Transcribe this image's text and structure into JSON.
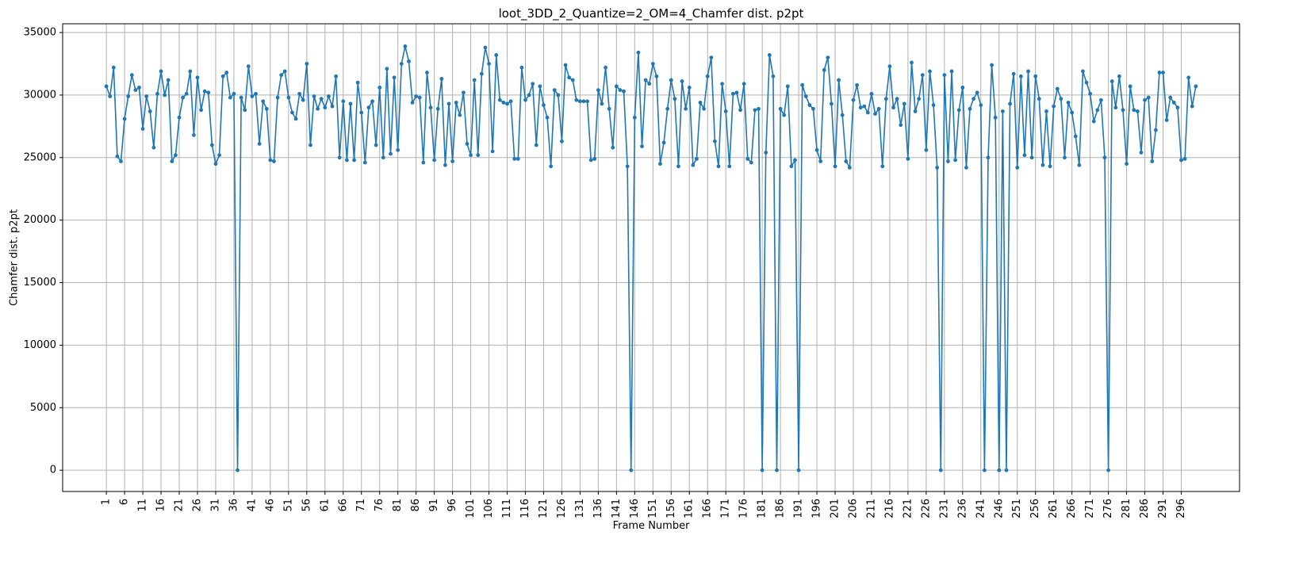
{
  "chart_data": {
    "type": "line",
    "title": "loot_3DD_2_Quantize=2_OM=4_Chamfer dist. p2pt",
    "xlabel": "Frame Number",
    "ylabel": "Chamfer dist. p2pt",
    "xlim": [
      -11,
      312
    ],
    "ylim": [
      -1700,
      35700
    ],
    "x_ticks": [
      1,
      6,
      11,
      16,
      21,
      26,
      31,
      36,
      41,
      46,
      51,
      56,
      61,
      66,
      71,
      76,
      81,
      86,
      91,
      96,
      101,
      106,
      111,
      116,
      121,
      126,
      131,
      136,
      141,
      146,
      151,
      156,
      161,
      166,
      171,
      176,
      181,
      186,
      191,
      196,
      201,
      206,
      211,
      216,
      221,
      226,
      231,
      236,
      241,
      246,
      251,
      256,
      261,
      266,
      271,
      276,
      281,
      286,
      291,
      296
    ],
    "y_ticks": [
      0,
      5000,
      10000,
      15000,
      20000,
      25000,
      30000,
      35000
    ],
    "grid": true,
    "color": "#1f77b4",
    "series": [
      {
        "x_start": 1,
        "values": [
          30700,
          29900,
          32200,
          25100,
          24700,
          28100,
          29900,
          31600,
          30400,
          30600,
          27300,
          29900,
          28700,
          25800,
          30100,
          31900,
          30000,
          31200,
          24700,
          25200,
          28200,
          29800,
          30100,
          31900,
          26800,
          31400,
          28800,
          30300,
          30200,
          26000,
          24500,
          25200,
          31500,
          31800,
          29800,
          30100,
          0,
          29800,
          28800,
          32300,
          29900,
          30100,
          26100,
          29500,
          28900,
          24800,
          24700,
          29800,
          31600,
          31900,
          29800,
          28600,
          28100,
          30100,
          29600,
          32500,
          26000,
          29900,
          28900,
          29700,
          29000,
          29900,
          29100,
          31500,
          25000,
          29500,
          24800,
          29300,
          24800,
          31000,
          28600,
          24600,
          29000,
          29500,
          26000,
          30600,
          25000,
          32100,
          25300,
          31400,
          25600,
          32500,
          33900,
          32700,
          29400,
          29900,
          29800,
          24600,
          31800,
          29000,
          24800,
          28900,
          31300,
          24400,
          29300,
          24700,
          29400,
          28400,
          30200,
          26100,
          25200,
          31200,
          25200,
          31700,
          33800,
          32500,
          25500,
          33200,
          29600,
          29400,
          29300,
          29500,
          24900,
          24900,
          32200,
          29600,
          30000,
          30900,
          26000,
          30700,
          29200,
          28200,
          24300,
          30400,
          30000,
          26300,
          32400,
          31400,
          31200,
          29600,
          29500,
          29500,
          29500,
          24800,
          24900,
          30400,
          29300,
          32200,
          28900,
          25800,
          30700,
          30400,
          30300,
          24300,
          0,
          28200,
          33400,
          25900,
          31200,
          30900,
          32500,
          31500,
          24500,
          26200,
          28900,
          31200,
          29700,
          24300,
          31100,
          28900,
          30600,
          24400,
          24900,
          29400,
          28900,
          31500,
          33000,
          26300,
          24300,
          30900,
          28700,
          24300,
          30100,
          30200,
          28800,
          30900,
          24900,
          24600,
          28800,
          28900,
          0,
          25400,
          33200,
          31500,
          0,
          28900,
          28400,
          30700,
          24300,
          24800,
          0,
          30800,
          29900,
          29200,
          28900,
          25600,
          24700,
          32000,
          33000,
          29300,
          24300,
          31200,
          28400,
          24700,
          24200,
          29600,
          30800,
          29000,
          29100,
          28600,
          30100,
          28500,
          28900,
          24300,
          29700,
          32300,
          29000,
          29700,
          27600,
          29300,
          24900,
          32600,
          28700,
          29700,
          31600,
          25600,
          31900,
          29200,
          24200,
          0,
          31600,
          24700,
          31900,
          24800,
          28800,
          30600,
          24200,
          28900,
          29700,
          30200,
          29200,
          0,
          25000,
          32400,
          28200,
          0,
          28700,
          0,
          29300,
          31700,
          24200,
          31500,
          25200,
          31900,
          25000,
          31500,
          29700,
          24400,
          28700,
          24300,
          29100,
          30500,
          29700,
          25000,
          29400,
          28600,
          26700,
          24400,
          31900,
          31000,
          30100,
          27900,
          28800,
          29600,
          25000,
          0,
          31100,
          29000,
          31500,
          28800,
          24500,
          30700,
          28800,
          28700,
          25400,
          29600,
          29800,
          24700,
          27200,
          31800,
          31800,
          28000,
          29800,
          29400,
          29000,
          24800,
          24900,
          31400,
          29100,
          30700
        ]
      }
    ]
  }
}
